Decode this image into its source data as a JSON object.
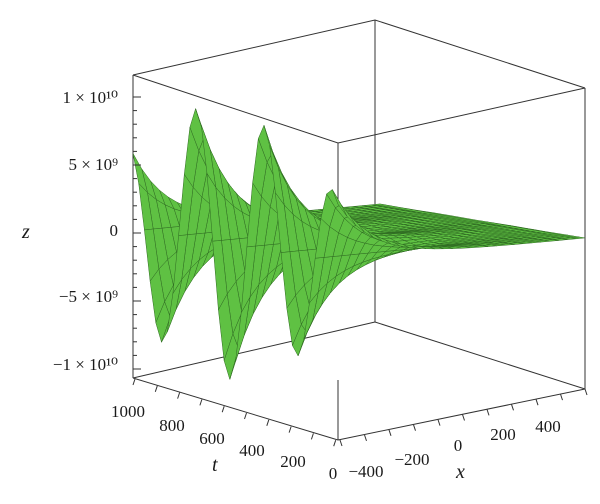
{
  "chart_data": {
    "type": "surface3d",
    "title": "",
    "axes": {
      "x": {
        "label": "x",
        "range": [
          -500,
          500
        ],
        "ticks": [
          "−400",
          "−200",
          "0",
          "200",
          "400"
        ]
      },
      "t": {
        "label": "t",
        "range": [
          100,
          1000
        ],
        "ticks": [
          "1000",
          "800",
          "600",
          "400",
          "200",
          "0"
        ]
      },
      "z": {
        "label": "z",
        "range": [
          -12000000000.0,
          12000000000.0
        ],
        "ticks": [
          "1 × 10¹⁰",
          "5 × 10⁹",
          "0",
          "−5 × 10⁹",
          "−1 × 10¹⁰"
        ]
      }
    },
    "surface": {
      "description_values": {
        "peak_z": 10000000000.0,
        "trough_z": -10000000000.0,
        "flat_z": 0
      },
      "color": "#5fc143",
      "mesh_color": "#2f6b22"
    }
  }
}
